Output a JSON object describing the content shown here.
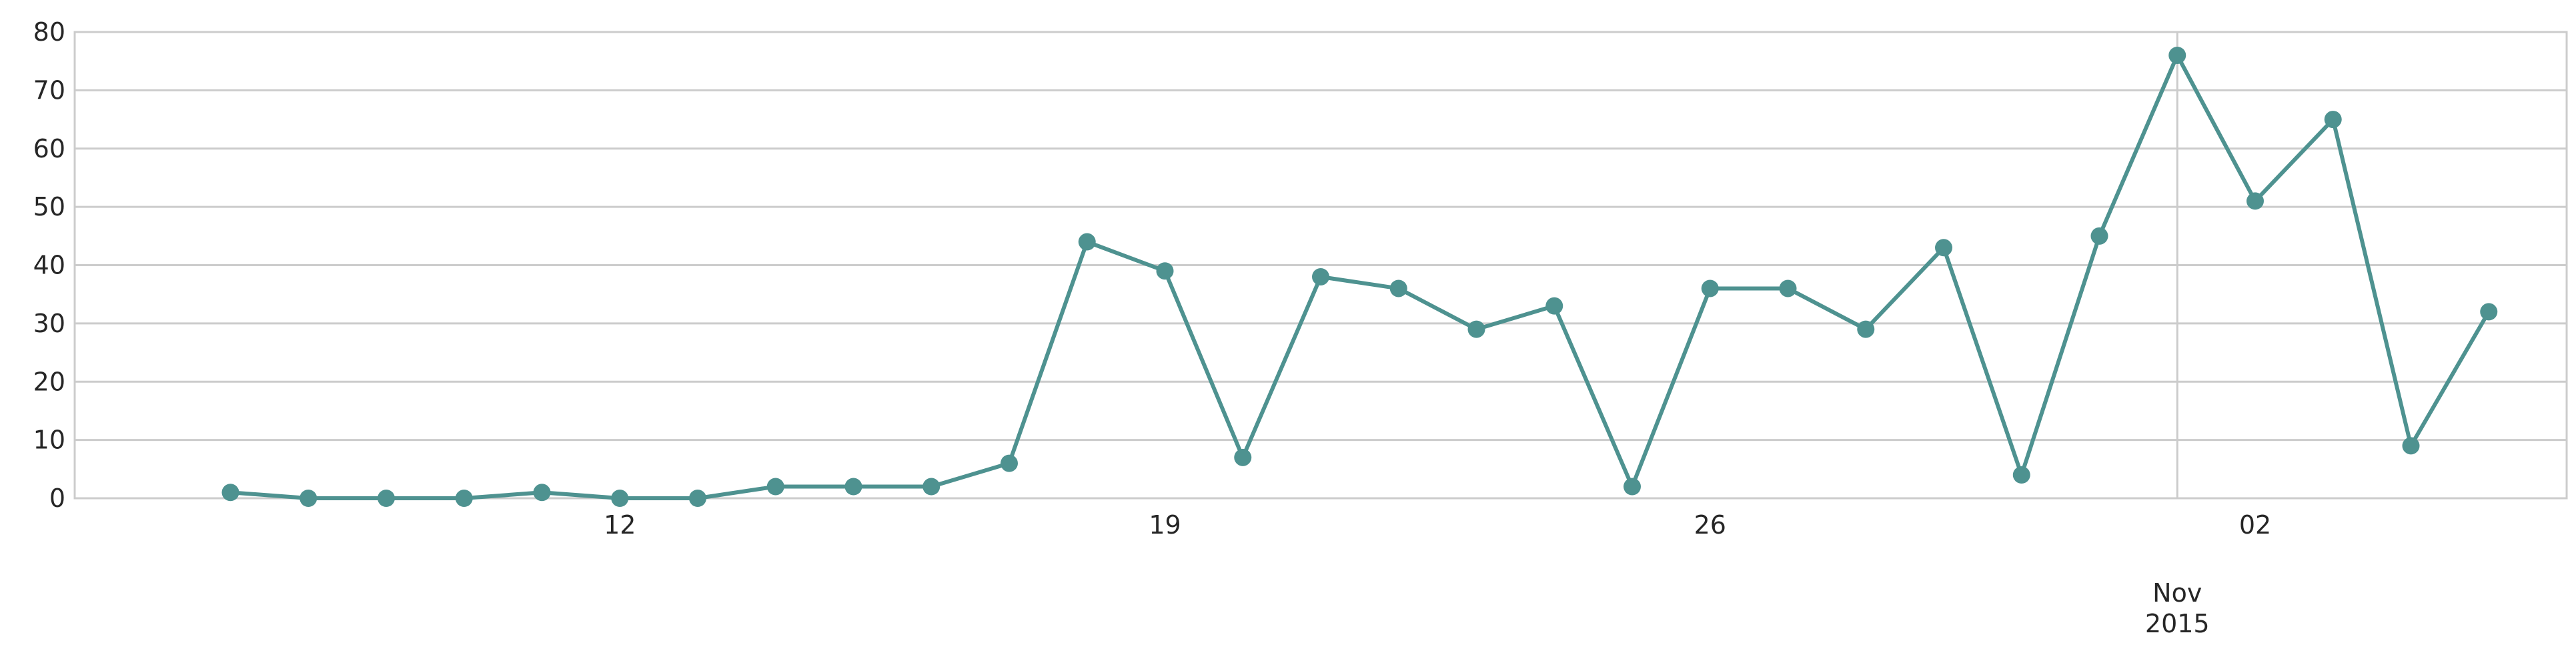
{
  "chart_data": {
    "type": "line",
    "title": "",
    "xlabel": "",
    "ylabel": "",
    "x_start": "2015-10-05",
    "x_end": "2015-11-06",
    "ylim": [
      0,
      80
    ],
    "y_ticks": [
      0,
      10,
      20,
      30,
      40,
      50,
      60,
      70,
      80
    ],
    "x_ticks": [
      {
        "date": "2015-10-12",
        "label": "12"
      },
      {
        "date": "2015-10-19",
        "label": "19"
      },
      {
        "date": "2015-10-26",
        "label": "26"
      },
      {
        "date": "2015-11-02",
        "label": "02"
      }
    ],
    "x_major_tick": {
      "date": "2015-11-01",
      "label_line1": "Nov",
      "label_line2": "2015"
    },
    "grid": true,
    "series": [
      {
        "color": "#4e9290",
        "points": [
          {
            "x": "2015-10-07",
            "y": 1
          },
          {
            "x": "2015-10-08",
            "y": 0
          },
          {
            "x": "2015-10-09",
            "y": 0
          },
          {
            "x": "2015-10-10",
            "y": 0
          },
          {
            "x": "2015-10-11",
            "y": 1
          },
          {
            "x": "2015-10-12",
            "y": 0
          },
          {
            "x": "2015-10-13",
            "y": 0
          },
          {
            "x": "2015-10-14",
            "y": 2
          },
          {
            "x": "2015-10-15",
            "y": 2
          },
          {
            "x": "2015-10-16",
            "y": 2
          },
          {
            "x": "2015-10-17",
            "y": 6
          },
          {
            "x": "2015-10-18",
            "y": 44
          },
          {
            "x": "2015-10-19",
            "y": 39
          },
          {
            "x": "2015-10-20",
            "y": 7
          },
          {
            "x": "2015-10-21",
            "y": 38
          },
          {
            "x": "2015-10-22",
            "y": 36
          },
          {
            "x": "2015-10-23",
            "y": 29
          },
          {
            "x": "2015-10-24",
            "y": 33
          },
          {
            "x": "2015-10-25",
            "y": 2
          },
          {
            "x": "2015-10-26",
            "y": 36
          },
          {
            "x": "2015-10-27",
            "y": 36
          },
          {
            "x": "2015-10-28",
            "y": 29
          },
          {
            "x": "2015-10-29",
            "y": 43
          },
          {
            "x": "2015-10-30",
            "y": 4
          },
          {
            "x": "2015-10-31",
            "y": 45
          },
          {
            "x": "2015-11-01",
            "y": 76
          },
          {
            "x": "2015-11-02",
            "y": 51
          },
          {
            "x": "2015-11-03",
            "y": 65
          },
          {
            "x": "2015-11-04",
            "y": 9
          },
          {
            "x": "2015-11-05",
            "y": 32
          }
        ]
      }
    ]
  }
}
